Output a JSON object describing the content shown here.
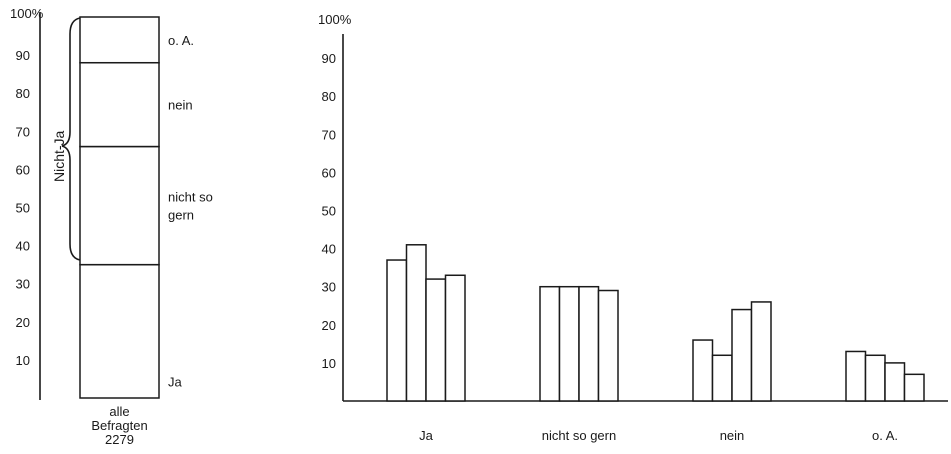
{
  "chart_data": [
    {
      "type": "stacked_bar",
      "y_axis_top_label": "100%",
      "y_ticks": [
        "10",
        "20",
        "30",
        "40",
        "50",
        "60",
        "70",
        "80",
        "90"
      ],
      "ylim": [
        0,
        100
      ],
      "segments": [
        {
          "label": "Ja",
          "value": 35
        },
        {
          "label": "nicht so gern",
          "label_lines": [
            "nicht so",
            "gern"
          ],
          "value": 31
        },
        {
          "label": "nein",
          "value": 22
        },
        {
          "label": "o. A.",
          "value": 12
        }
      ],
      "brace_label": "Nicht-Ja",
      "bar_label_lines": [
        "alle",
        "Befragten",
        "2279"
      ]
    },
    {
      "type": "bar",
      "y_axis_top_label": "100%",
      "y_ticks": [
        "10",
        "20",
        "30",
        "40",
        "50",
        "60",
        "70",
        "80",
        "90"
      ],
      "ylim": [
        0,
        100
      ],
      "categories": [
        "Ja",
        "nicht so gern",
        "nein",
        "o. A."
      ],
      "values": [
        [
          37,
          41,
          32,
          33
        ],
        [
          30,
          30,
          30,
          29
        ],
        [
          16,
          12,
          24,
          26
        ],
        [
          13,
          12,
          10,
          7
        ]
      ]
    }
  ]
}
